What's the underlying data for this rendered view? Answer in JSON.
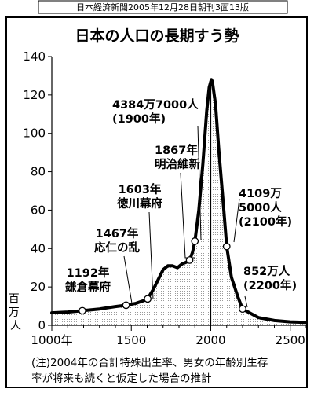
{
  "source_line": "日本経済新聞2005年12月28日朝刊3面13版",
  "chart_data": {
    "type": "area",
    "title": "日本の人口の長期すう勢",
    "ylabel": "百万人",
    "xlim": [
      1000,
      2600
    ],
    "ylim": [
      0,
      140
    ],
    "x_ticks": [
      "1000年",
      "1500",
      "2000",
      "2500"
    ],
    "x_tick_values": [
      1000,
      1500,
      2000,
      2500
    ],
    "y_ticks": [
      0,
      20,
      40,
      60,
      80,
      100,
      120,
      140
    ],
    "grid": false,
    "series": [
      {
        "points": [
          [
            1000,
            6.5
          ],
          [
            1100,
            6.9
          ],
          [
            1192,
            7.6
          ],
          [
            1300,
            8.5
          ],
          [
            1400,
            9.8
          ],
          [
            1467,
            10.5
          ],
          [
            1530,
            11.5
          ],
          [
            1600,
            13.5
          ],
          [
            1640,
            19
          ],
          [
            1700,
            29
          ],
          [
            1730,
            31
          ],
          [
            1760,
            31
          ],
          [
            1790,
            30
          ],
          [
            1820,
            32
          ],
          [
            1850,
            33
          ],
          [
            1867,
            34
          ],
          [
            1885,
            38
          ],
          [
            1900,
            43.847
          ],
          [
            1925,
            60
          ],
          [
            1950,
            84
          ],
          [
            1975,
            112
          ],
          [
            1990,
            124
          ],
          [
            2000,
            127
          ],
          [
            2004,
            128
          ],
          [
            2010,
            127
          ],
          [
            2030,
            115
          ],
          [
            2050,
            92
          ],
          [
            2080,
            62
          ],
          [
            2100,
            41.09
          ],
          [
            2130,
            25
          ],
          [
            2170,
            15
          ],
          [
            2200,
            8.52
          ],
          [
            2300,
            4
          ],
          [
            2400,
            2.5
          ],
          [
            2500,
            1.8
          ],
          [
            2600,
            1.5
          ]
        ]
      }
    ],
    "annotations": [
      {
        "x": 1192,
        "y": 7.6,
        "lines": [
          "1192年",
          "鎌倉幕府"
        ]
      },
      {
        "x": 1467,
        "y": 10.5,
        "lines": [
          "1467年",
          "応仁の乱"
        ]
      },
      {
        "x": 1603,
        "y": 13.8,
        "lines": [
          "1603年",
          "徳川幕府"
        ]
      },
      {
        "x": 1867,
        "y": 34,
        "lines": [
          "1867年",
          "明治維新"
        ]
      },
      {
        "x": 1900,
        "y": 43.847,
        "lines": [
          "4384万7000人",
          "(1900年)"
        ]
      },
      {
        "x": 2100,
        "y": 41.09,
        "lines": [
          "4109万",
          "5000人",
          "(2100年)"
        ]
      },
      {
        "x": 2200,
        "y": 8.52,
        "lines": [
          "852万人",
          "(2200年)"
        ]
      }
    ]
  },
  "note": {
    "line1": "(注)2004年の合計特殊出生率、男女の年齢別生存",
    "line2": "率が将来も続くと仮定した場合の推計"
  }
}
